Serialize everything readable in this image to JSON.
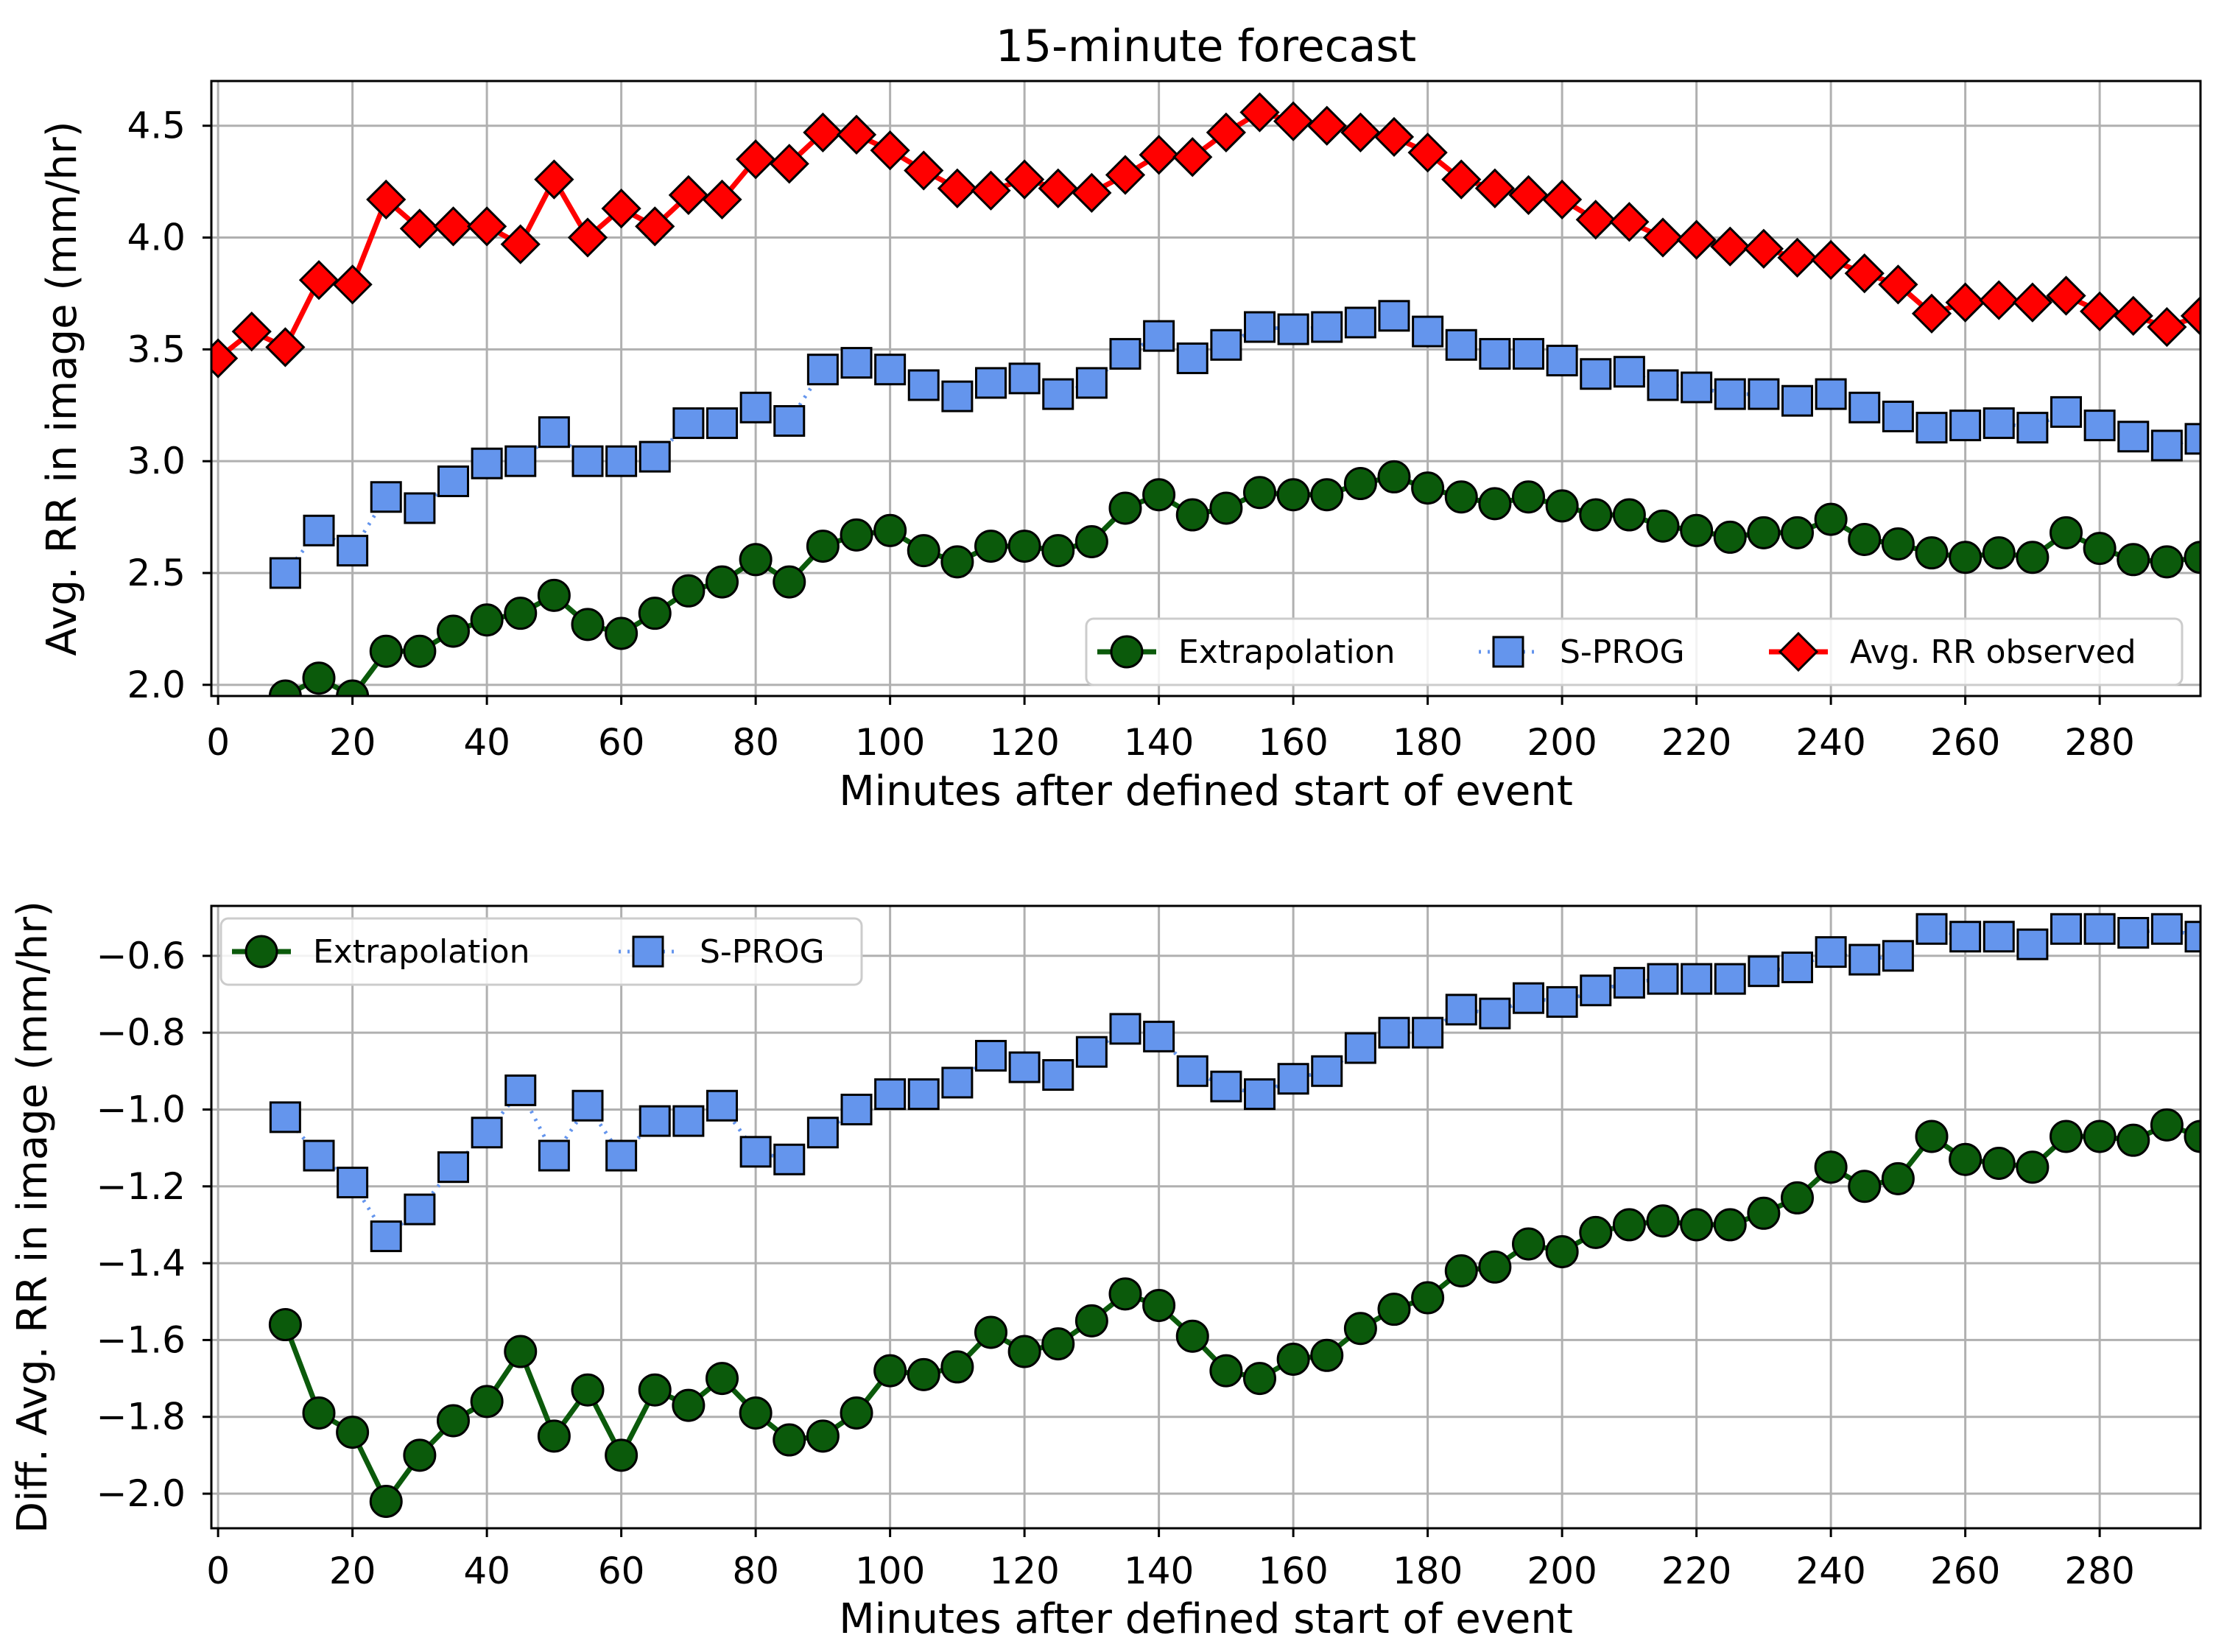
{
  "chart_data": [
    {
      "type": "line",
      "title": "15-minute forecast",
      "xlabel": "Minutes after defined start of event",
      "ylabel": "Avg. RR in image (mm/hr)",
      "xlim": [
        -1,
        295
      ],
      "ylim": [
        1.95,
        4.7
      ],
      "xticks": [
        0,
        20,
        40,
        60,
        80,
        100,
        120,
        140,
        160,
        180,
        200,
        220,
        240,
        260,
        280
      ],
      "yticks": [
        2.0,
        2.5,
        3.0,
        3.5,
        4.0,
        4.5
      ],
      "ytick_labels": [
        "2.0",
        "2.5",
        "3.0",
        "3.5",
        "4.0",
        "4.5"
      ],
      "grid": true,
      "legend_position": "lower-right",
      "series": [
        {
          "name": "Extrapolation",
          "color": "#0b5a0b",
          "marker": "circle",
          "line_style": "solid",
          "x": [
            10,
            15,
            20,
            25,
            30,
            35,
            40,
            45,
            50,
            55,
            60,
            65,
            70,
            75,
            80,
            85,
            90,
            95,
            100,
            105,
            110,
            115,
            120,
            125,
            130,
            135,
            140,
            145,
            150,
            155,
            160,
            165,
            170,
            175,
            180,
            185,
            190,
            195,
            200,
            205,
            210,
            215,
            220,
            225,
            230,
            235,
            240,
            245,
            250,
            255,
            260,
            265,
            270,
            275,
            280,
            285,
            290,
            295
          ],
          "values": [
            1.95,
            2.03,
            1.95,
            2.15,
            2.15,
            2.24,
            2.29,
            2.32,
            2.4,
            2.27,
            2.23,
            2.32,
            2.42,
            2.46,
            2.56,
            2.46,
            2.62,
            2.67,
            2.69,
            2.6,
            2.55,
            2.62,
            2.62,
            2.6,
            2.64,
            2.79,
            2.85,
            2.76,
            2.79,
            2.86,
            2.85,
            2.85,
            2.9,
            2.93,
            2.88,
            2.84,
            2.81,
            2.84,
            2.8,
            2.76,
            2.76,
            2.71,
            2.69,
            2.66,
            2.68,
            2.68,
            2.74,
            2.65,
            2.63,
            2.59,
            2.57,
            2.59,
            2.57,
            2.68,
            2.61,
            2.56,
            2.55,
            2.57
          ]
        },
        {
          "name": "S-PROG",
          "color": "#6495ed",
          "marker": "square",
          "line_style": "dotted",
          "x": [
            10,
            15,
            20,
            25,
            30,
            35,
            40,
            45,
            50,
            55,
            60,
            65,
            70,
            75,
            80,
            85,
            90,
            95,
            100,
            105,
            110,
            115,
            120,
            125,
            130,
            135,
            140,
            145,
            150,
            155,
            160,
            165,
            170,
            175,
            180,
            185,
            190,
            195,
            200,
            205,
            210,
            215,
            220,
            225,
            230,
            235,
            240,
            245,
            250,
            255,
            260,
            265,
            270,
            275,
            280,
            285,
            290,
            295
          ],
          "values": [
            2.5,
            2.69,
            2.6,
            2.84,
            2.79,
            2.91,
            2.99,
            3.0,
            3.13,
            3.0,
            3.0,
            3.02,
            3.17,
            3.17,
            3.24,
            3.18,
            3.41,
            3.44,
            3.41,
            3.34,
            3.29,
            3.35,
            3.37,
            3.3,
            3.35,
            3.48,
            3.56,
            3.46,
            3.52,
            3.6,
            3.59,
            3.6,
            3.62,
            3.65,
            3.58,
            3.52,
            3.48,
            3.48,
            3.45,
            3.39,
            3.4,
            3.34,
            3.33,
            3.3,
            3.3,
            3.27,
            3.3,
            3.24,
            3.2,
            3.15,
            3.16,
            3.17,
            3.15,
            3.22,
            3.16,
            3.11,
            3.07,
            3.1
          ]
        },
        {
          "name": "Avg. RR observed",
          "color": "#ff0000",
          "marker": "diamond",
          "line_style": "solid",
          "x": [
            0,
            5,
            10,
            15,
            20,
            25,
            30,
            35,
            40,
            45,
            50,
            55,
            60,
            65,
            70,
            75,
            80,
            85,
            90,
            95,
            100,
            105,
            110,
            115,
            120,
            125,
            130,
            135,
            140,
            145,
            150,
            155,
            160,
            165,
            170,
            175,
            180,
            185,
            190,
            195,
            200,
            205,
            210,
            215,
            220,
            225,
            230,
            235,
            240,
            245,
            250,
            255,
            260,
            265,
            270,
            275,
            280,
            285,
            290,
            295
          ],
          "values": [
            3.46,
            3.58,
            3.51,
            3.81,
            3.79,
            4.17,
            4.04,
            4.05,
            4.05,
            3.97,
            4.26,
            4.0,
            4.13,
            4.05,
            4.19,
            4.17,
            4.35,
            4.33,
            4.47,
            4.46,
            4.39,
            4.3,
            4.22,
            4.21,
            4.26,
            4.22,
            4.2,
            4.28,
            4.37,
            4.36,
            4.47,
            4.56,
            4.52,
            4.5,
            4.47,
            4.45,
            4.38,
            4.26,
            4.22,
            4.19,
            4.17,
            4.08,
            4.07,
            4.0,
            3.99,
            3.96,
            3.95,
            3.91,
            3.9,
            3.84,
            3.79,
            3.66,
            3.71,
            3.72,
            3.71,
            3.74,
            3.67,
            3.65,
            3.6,
            3.65
          ]
        }
      ]
    },
    {
      "type": "line",
      "title": "",
      "xlabel": "Minutes after defined start of event",
      "ylabel": "Diff. Avg. RR in image (mm/hr)",
      "xlim": [
        -1,
        295
      ],
      "ylim": [
        -2.09,
        -0.47
      ],
      "xticks": [
        0,
        20,
        40,
        60,
        80,
        100,
        120,
        140,
        160,
        180,
        200,
        220,
        240,
        260,
        280
      ],
      "yticks": [
        -2.0,
        -1.8,
        -1.6,
        -1.4,
        -1.2,
        -1.0,
        -0.8,
        -0.6
      ],
      "ytick_labels": [
        "−2.0",
        "−1.8",
        "−1.6",
        "−1.4",
        "−1.2",
        "−1.0",
        "−0.8",
        "−0.6"
      ],
      "grid": true,
      "legend_position": "upper-left",
      "series": [
        {
          "name": "Extrapolation",
          "color": "#0b5a0b",
          "marker": "circle",
          "line_style": "solid",
          "x": [
            10,
            15,
            20,
            25,
            30,
            35,
            40,
            45,
            50,
            55,
            60,
            65,
            70,
            75,
            80,
            85,
            90,
            95,
            100,
            105,
            110,
            115,
            120,
            125,
            130,
            135,
            140,
            145,
            150,
            155,
            160,
            165,
            170,
            175,
            180,
            185,
            190,
            195,
            200,
            205,
            210,
            215,
            220,
            225,
            230,
            235,
            240,
            245,
            250,
            255,
            260,
            265,
            270,
            275,
            280,
            285,
            290,
            295
          ],
          "values": [
            -1.56,
            -1.79,
            -1.84,
            -2.02,
            -1.9,
            -1.81,
            -1.76,
            -1.63,
            -1.85,
            -1.73,
            -1.9,
            -1.73,
            -1.77,
            -1.7,
            -1.79,
            -1.86,
            -1.85,
            -1.79,
            -1.68,
            -1.69,
            -1.67,
            -1.58,
            -1.63,
            -1.61,
            -1.55,
            -1.48,
            -1.51,
            -1.59,
            -1.68,
            -1.7,
            -1.65,
            -1.64,
            -1.57,
            -1.52,
            -1.49,
            -1.42,
            -1.41,
            -1.35,
            -1.37,
            -1.32,
            -1.3,
            -1.29,
            -1.3,
            -1.3,
            -1.27,
            -1.23,
            -1.15,
            -1.2,
            -1.18,
            -1.07,
            -1.13,
            -1.14,
            -1.15,
            -1.07,
            -1.07,
            -1.08,
            -1.04,
            -1.07
          ]
        },
        {
          "name": "S-PROG",
          "color": "#6495ed",
          "marker": "square",
          "line_style": "dotted",
          "x": [
            10,
            15,
            20,
            25,
            30,
            35,
            40,
            45,
            50,
            55,
            60,
            65,
            70,
            75,
            80,
            85,
            90,
            95,
            100,
            105,
            110,
            115,
            120,
            125,
            130,
            135,
            140,
            145,
            150,
            155,
            160,
            165,
            170,
            175,
            180,
            185,
            190,
            195,
            200,
            205,
            210,
            215,
            220,
            225,
            230,
            235,
            240,
            245,
            250,
            255,
            260,
            265,
            270,
            275,
            280,
            285,
            290,
            295
          ],
          "values": [
            -1.02,
            -1.12,
            -1.19,
            -1.33,
            -1.26,
            -1.15,
            -1.06,
            -0.95,
            -1.12,
            -0.99,
            -1.12,
            -1.03,
            -1.03,
            -0.99,
            -1.11,
            -1.13,
            -1.06,
            -1.0,
            -0.96,
            -0.96,
            -0.93,
            -0.86,
            -0.89,
            -0.91,
            -0.85,
            -0.79,
            -0.81,
            -0.9,
            -0.94,
            -0.96,
            -0.92,
            -0.9,
            -0.84,
            -0.8,
            -0.8,
            -0.74,
            -0.75,
            -0.71,
            -0.72,
            -0.69,
            -0.67,
            -0.66,
            -0.66,
            -0.66,
            -0.64,
            -0.63,
            -0.59,
            -0.61,
            -0.6,
            -0.53,
            -0.55,
            -0.55,
            -0.57,
            -0.53,
            -0.53,
            -0.54,
            -0.53,
            -0.55
          ]
        }
      ]
    }
  ]
}
